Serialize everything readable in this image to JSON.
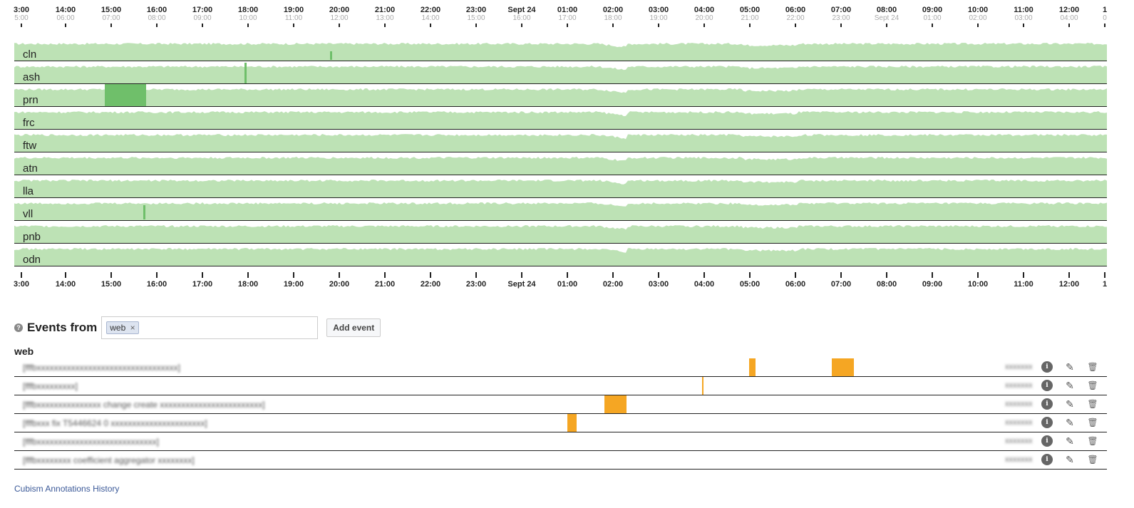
{
  "axis": {
    "top_ticks": [
      {
        "label": "3:00",
        "sub": "5:00"
      },
      {
        "label": "14:00",
        "sub": "06:00"
      },
      {
        "label": "15:00",
        "sub": "07:00"
      },
      {
        "label": "16:00",
        "sub": "08:00"
      },
      {
        "label": "17:00",
        "sub": "09:00"
      },
      {
        "label": "18:00",
        "sub": "10:00"
      },
      {
        "label": "19:00",
        "sub": "11:00"
      },
      {
        "label": "20:00",
        "sub": "12:00"
      },
      {
        "label": "21:00",
        "sub": "13:00"
      },
      {
        "label": "22:00",
        "sub": "14:00"
      },
      {
        "label": "23:00",
        "sub": "15:00"
      },
      {
        "label": "Sept 24",
        "sub": "16:00"
      },
      {
        "label": "01:00",
        "sub": "17:00"
      },
      {
        "label": "02:00",
        "sub": "18:00"
      },
      {
        "label": "03:00",
        "sub": "19:00"
      },
      {
        "label": "04:00",
        "sub": "20:00"
      },
      {
        "label": "05:00",
        "sub": "21:00"
      },
      {
        "label": "06:00",
        "sub": "22:00"
      },
      {
        "label": "07:00",
        "sub": "23:00"
      },
      {
        "label": "08:00",
        "sub": "Sept 24"
      },
      {
        "label": "09:00",
        "sub": "01:00"
      },
      {
        "label": "10:00",
        "sub": "02:00"
      },
      {
        "label": "11:00",
        "sub": "03:00"
      },
      {
        "label": "12:00",
        "sub": "04:00"
      },
      {
        "label": "1",
        "sub": "0"
      }
    ],
    "bottom_ticks": [
      "3:00",
      "14:00",
      "15:00",
      "16:00",
      "17:00",
      "18:00",
      "19:00",
      "20:00",
      "21:00",
      "22:00",
      "23:00",
      "Sept 24",
      "01:00",
      "02:00",
      "03:00",
      "04:00",
      "05:00",
      "06:00",
      "07:00",
      "08:00",
      "09:00",
      "10:00",
      "11:00",
      "12:00",
      "1"
    ]
  },
  "metrics": [
    {
      "name": "cln"
    },
    {
      "name": "ash"
    },
    {
      "name": "prn"
    },
    {
      "name": "frc"
    },
    {
      "name": "ftw"
    },
    {
      "name": "atn"
    },
    {
      "name": "lla"
    },
    {
      "name": "vll"
    },
    {
      "name": "pnb"
    },
    {
      "name": "odn"
    }
  ],
  "colors": {
    "horizon_band1": "#bde2b5",
    "horizon_band2": "#6fbf6a",
    "event_bar": "#f5a623",
    "link": "#3b5998"
  },
  "events": {
    "title": "Events from",
    "help_icon": "question-icon",
    "filter_tokens": [
      {
        "label": "web",
        "remove": "×"
      }
    ],
    "add_button": "Add event",
    "group_title": "web",
    "rows": [
      {
        "text": "[fffbxxxxxxxxxxxxxxxxxxxxxxxxxxxxxxxxx]",
        "owner": "xxxxxxx"
      },
      {
        "text": "[fffbxxxxxxxxx]",
        "owner": "xxxxxxx"
      },
      {
        "text": "[fffbxxxxxxxxxxxxxxx change create xxxxxxxxxxxxxxxxxxxxxxxx]",
        "owner": "xxxxxxx"
      },
      {
        "text": "[fffbxxx fix T5446624 0 xxxxxxxxxxxxxxxxxxxxxx]",
        "owner": "xxxxxxx"
      },
      {
        "text": "[fffbxxxxxxxxxxxxxxxxxxxxxxxxxxxx]",
        "owner": "xxxxxxx"
      },
      {
        "text": "[fffbxxxxxxxx coefficient aggregator xxxxxxxx]",
        "owner": "xxxxxxx"
      }
    ],
    "actions": {
      "info": "i",
      "edit": "✎",
      "delete": "🗑"
    }
  },
  "footer": {
    "link_text": "Cubism Annotations History"
  }
}
